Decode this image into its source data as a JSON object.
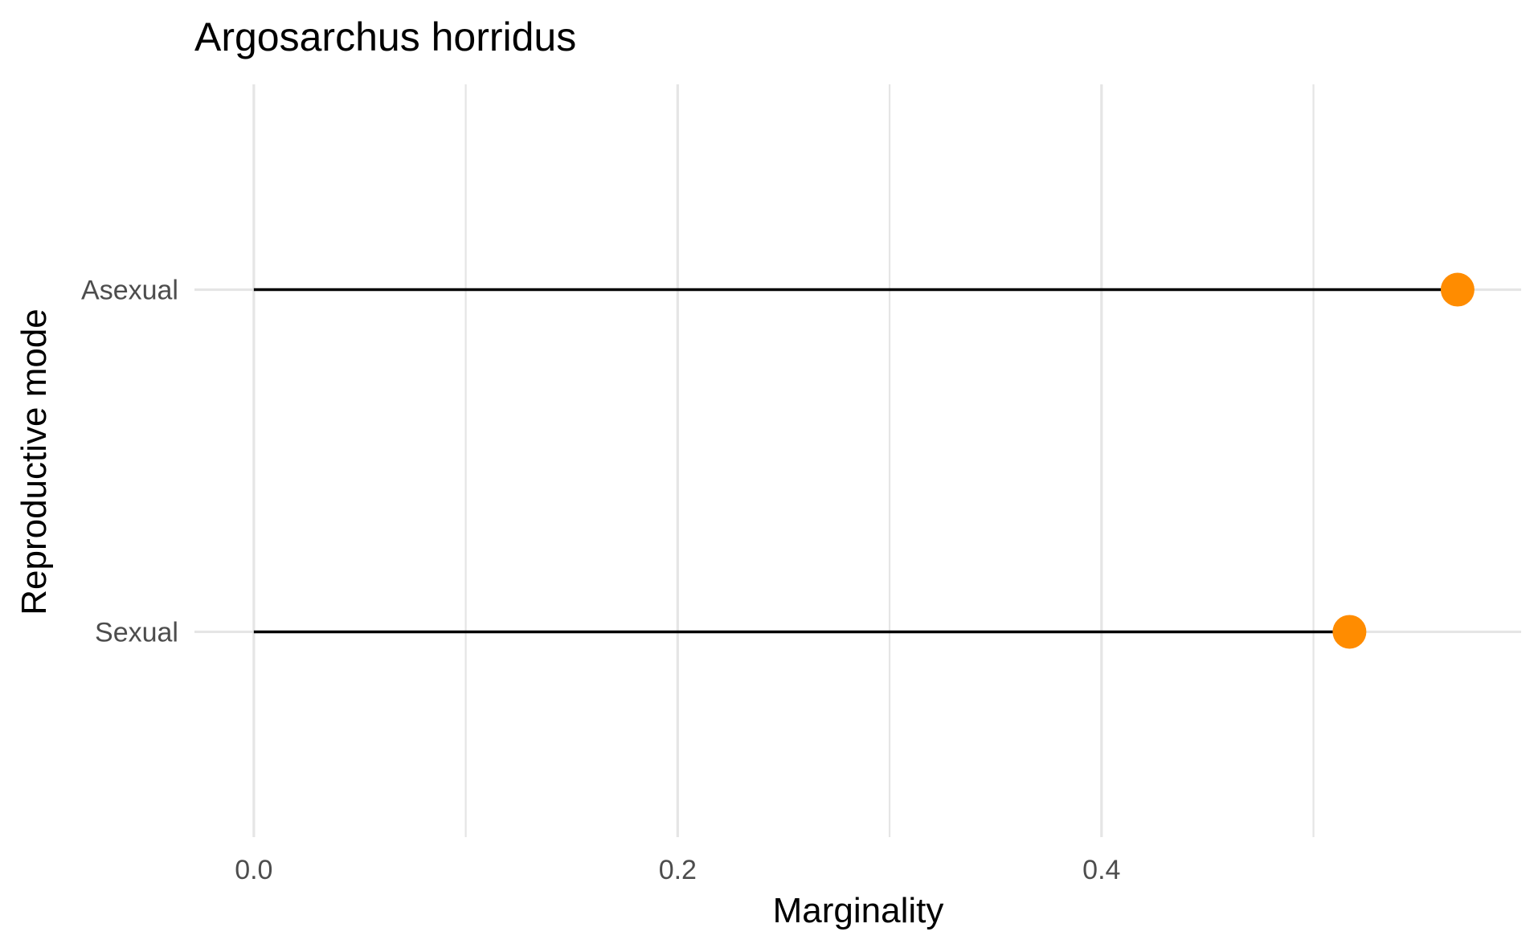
{
  "chart_data": {
    "type": "lollipop",
    "title": "Argosarchus horridus",
    "xlabel": "Marginality",
    "ylabel": "Reproductive mode",
    "categories": [
      "Asexual",
      "Sexual"
    ],
    "values": [
      0.568,
      0.517
    ],
    "xlim": [
      -0.028,
      0.598
    ],
    "x_ticks": [
      0.0,
      0.2,
      0.4
    ],
    "x_tick_labels": [
      "0.0",
      "0.2",
      "0.4"
    ],
    "x_minor_gridlines": [
      0.1,
      0.3,
      0.5
    ],
    "grid": true,
    "legend": "none",
    "point_color": "#FF8C00",
    "stem_color": "#000000",
    "grid_color": "#E5E5E5"
  }
}
